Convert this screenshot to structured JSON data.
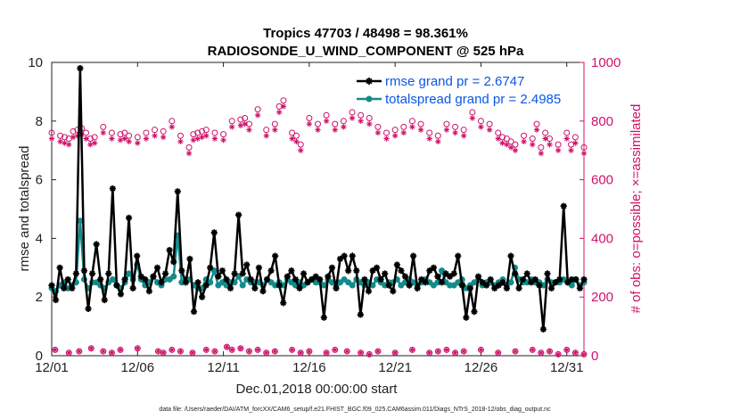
{
  "chart_data": {
    "type": "line",
    "title": "Tropics 47703 / 48498 = 98.361%",
    "subtitle": "RADIOSONDE_U_WIND_COMPONENT @ 525 hPa",
    "xlabel": "Dec.01,2018 00:00:00 start",
    "ylabel": "rmse and totalspread",
    "y2label": "# of obs: o=possible; ×=assimilated",
    "xlim": [
      0,
      31
    ],
    "ylim": [
      0,
      10
    ],
    "y2lim": [
      0,
      1000
    ],
    "x_ticks": [
      0,
      5,
      10,
      15,
      20,
      25,
      30
    ],
    "x_tick_labels": [
      "12/01",
      "12/06",
      "12/11",
      "12/16",
      "12/21",
      "12/26",
      "12/31"
    ],
    "y_ticks": [
      0,
      2,
      4,
      6,
      8,
      10
    ],
    "y2_ticks": [
      0,
      200,
      400,
      600,
      800,
      1000
    ],
    "legend_position": "top-right",
    "footnote": "data file: /Users/raeder/DAI/ATM_forcXX/CAM6_setup/f.e21.FHIST_BGC.f09_025.CAM6assim.011/Diags_NTrS_2018-12/obs_diag_output.nc",
    "series": [
      {
        "name": "rmse grand pr = 2.6747",
        "color": "#000000",
        "marker": "star",
        "values": [
          2.4,
          1.9,
          3.0,
          2.3,
          2.6,
          2.3,
          2.8,
          9.8,
          2.9,
          1.6,
          2.8,
          3.8,
          2.6,
          1.9,
          2.8,
          5.7,
          2.4,
          2.1,
          2.6,
          4.7,
          2.3,
          3.4,
          2.7,
          2.6,
          2.2,
          2.7,
          3.0,
          2.5,
          2.8,
          3.6,
          3.2,
          5.6,
          2.9,
          2.5,
          3.3,
          1.5,
          2.5,
          2.0,
          2.4,
          3.0,
          4.2,
          2.7,
          2.9,
          2.6,
          2.3,
          2.8,
          4.8,
          2.8,
          3.1,
          2.6,
          2.3,
          3.0,
          2.2,
          2.6,
          2.9,
          3.4,
          2.4,
          1.8,
          2.7,
          2.9,
          2.6,
          2.3,
          2.8,
          2.5,
          2.6,
          2.7,
          2.6,
          1.3,
          2.7,
          3.0,
          2.3,
          3.3,
          3.4,
          2.9,
          3.4,
          2.9,
          1.4,
          2.6,
          2.2,
          2.9,
          3.0,
          2.6,
          2.8,
          2.4,
          2.2,
          3.1,
          2.9,
          2.7,
          2.4,
          3.4,
          2.3,
          2.6,
          2.5,
          2.9,
          3.0,
          2.7,
          2.5,
          2.8,
          2.7,
          2.8,
          3.4,
          2.4,
          1.3,
          2.3,
          1.5,
          2.7,
          2.5,
          2.4,
          2.6,
          2.3,
          2.4,
          2.5,
          2.3,
          3.4,
          2.8,
          2.3,
          2.6,
          2.8,
          2.5,
          2.6,
          2.4,
          0.9,
          2.8,
          2.3,
          2.5,
          2.6,
          5.1,
          2.5,
          2.6,
          2.6,
          2.3,
          2.6
        ]
      },
      {
        "name": "totalspread grand pr = 2.4985",
        "color": "#138b8b",
        "marker": "circle",
        "values": [
          2.3,
          2.2,
          2.4,
          2.5,
          2.3,
          2.4,
          2.5,
          4.6,
          2.6,
          2.3,
          2.5,
          2.5,
          2.4,
          2.3,
          2.5,
          2.6,
          2.4,
          2.3,
          2.5,
          2.8,
          2.6,
          3.1,
          2.6,
          2.4,
          2.5,
          2.7,
          2.5,
          2.4,
          2.6,
          2.6,
          2.7,
          4.1,
          2.5,
          2.6,
          2.6,
          2.4,
          2.3,
          2.3,
          2.6,
          2.5,
          2.9,
          2.4,
          2.5,
          2.4,
          2.5,
          2.5,
          2.7,
          2.4,
          2.6,
          2.5,
          2.5,
          2.5,
          2.4,
          2.6,
          2.5,
          2.4,
          2.5,
          2.4,
          2.6,
          2.5,
          2.4,
          2.5,
          2.4,
          2.5,
          2.6,
          2.5,
          2.5,
          2.4,
          2.6,
          2.5,
          2.4,
          2.5,
          2.6,
          2.5,
          2.4,
          2.6,
          2.5,
          2.4,
          2.5,
          2.4,
          2.6,
          2.5,
          2.4,
          2.5,
          2.5,
          2.6,
          2.4,
          2.5,
          2.6,
          2.5,
          2.4,
          2.5,
          2.6,
          2.5,
          2.4,
          2.5,
          2.9,
          2.5,
          2.4,
          2.4,
          2.5,
          2.6,
          2.3,
          2.4,
          2.5,
          2.6,
          2.4,
          2.5,
          2.5,
          2.4,
          2.5,
          2.6,
          2.4,
          2.5,
          3.0,
          2.6,
          2.5,
          2.5,
          2.6,
          2.5,
          2.5,
          2.4,
          2.6,
          2.5,
          2.5,
          2.5,
          2.6,
          2.5,
          2.4,
          2.6,
          2.4,
          2.5
        ]
      }
    ],
    "obs_possible_color": "#d0116a",
    "obs_possible_x": [
      0.0,
      0.5,
      0.75,
      1.0,
      1.25,
      1.5,
      1.75,
      2.0,
      2.25,
      2.5,
      3.0,
      3.5,
      4.0,
      4.25,
      4.5,
      5.0,
      5.5,
      6.0,
      6.5,
      7.0,
      7.5,
      8.0,
      8.25,
      8.5,
      8.75,
      9.0,
      9.5,
      10.0,
      10.5,
      11.0,
      11.25,
      11.5,
      12.0,
      12.5,
      13.0,
      13.25,
      13.5,
      14.0,
      14.25,
      14.5,
      15.0,
      15.5,
      16.0,
      16.5,
      17.0,
      17.5,
      18.0,
      18.5,
      19.0,
      19.5,
      20.0,
      20.5,
      21.0,
      21.5,
      22.0,
      22.5,
      23.0,
      23.5,
      24.0,
      24.5,
      25.0,
      25.5,
      26.0,
      26.25,
      26.5,
      26.75,
      27.0,
      27.5,
      28.0,
      28.25,
      28.5,
      28.75,
      29.0,
      29.5,
      30.0,
      30.25,
      30.5,
      31.0
    ],
    "obs_possible_counts": [
      760,
      750,
      745,
      740,
      765,
      770,
      775,
      760,
      740,
      745,
      780,
      760,
      755,
      760,
      750,
      745,
      760,
      770,
      765,
      800,
      750,
      710,
      755,
      760,
      765,
      770,
      760,
      755,
      800,
      805,
      810,
      790,
      840,
      770,
      790,
      850,
      870,
      760,
      750,
      720,
      810,
      790,
      820,
      790,
      800,
      830,
      820,
      810,
      780,
      760,
      770,
      780,
      800,
      790,
      760,
      750,
      790,
      780,
      770,
      830,
      800,
      790,
      760,
      745,
      740,
      730,
      720,
      750,
      740,
      790,
      710,
      760,
      740,
      720,
      760,
      720,
      745,
      710
    ],
    "obs_assim_counts": [
      740,
      730,
      725,
      720,
      745,
      750,
      755,
      740,
      720,
      725,
      760,
      740,
      735,
      740,
      730,
      725,
      740,
      750,
      745,
      780,
      730,
      690,
      735,
      740,
      745,
      750,
      740,
      735,
      780,
      785,
      790,
      770,
      820,
      750,
      770,
      830,
      850,
      740,
      730,
      700,
      790,
      770,
      800,
      770,
      780,
      810,
      800,
      790,
      760,
      740,
      750,
      760,
      780,
      770,
      740,
      730,
      770,
      760,
      750,
      810,
      780,
      770,
      740,
      725,
      720,
      710,
      700,
      730,
      720,
      770,
      690,
      740,
      720,
      700,
      740,
      700,
      725,
      690
    ],
    "obs_low_x": [
      0.2,
      1.0,
      1.6,
      2.3,
      3.0,
      3.5,
      4.0,
      5.0,
      6.2,
      6.5,
      7.0,
      7.5,
      8.2,
      9.0,
      9.5,
      10.2,
      10.5,
      11.0,
      11.5,
      12.0,
      12.5,
      13.0,
      14.0,
      14.5,
      15.0,
      16.0,
      16.5,
      17.2,
      18.0,
      18.5,
      19.0,
      20.0,
      21.0,
      22.0,
      22.5,
      23.0,
      23.5,
      24.0,
      25.0,
      26.0,
      27.0,
      28.0,
      28.5,
      29.0,
      29.5,
      30.0,
      30.5,
      31.0
    ],
    "obs_low_counts": [
      20,
      10,
      15,
      25,
      15,
      10,
      20,
      25,
      15,
      10,
      20,
      15,
      10,
      20,
      15,
      30,
      20,
      25,
      15,
      20,
      10,
      15,
      20,
      10,
      15,
      10,
      20,
      15,
      10,
      5,
      15,
      10,
      20,
      10,
      15,
      20,
      10,
      15,
      20,
      10,
      15,
      20,
      10,
      15,
      5,
      20,
      10,
      5
    ]
  }
}
